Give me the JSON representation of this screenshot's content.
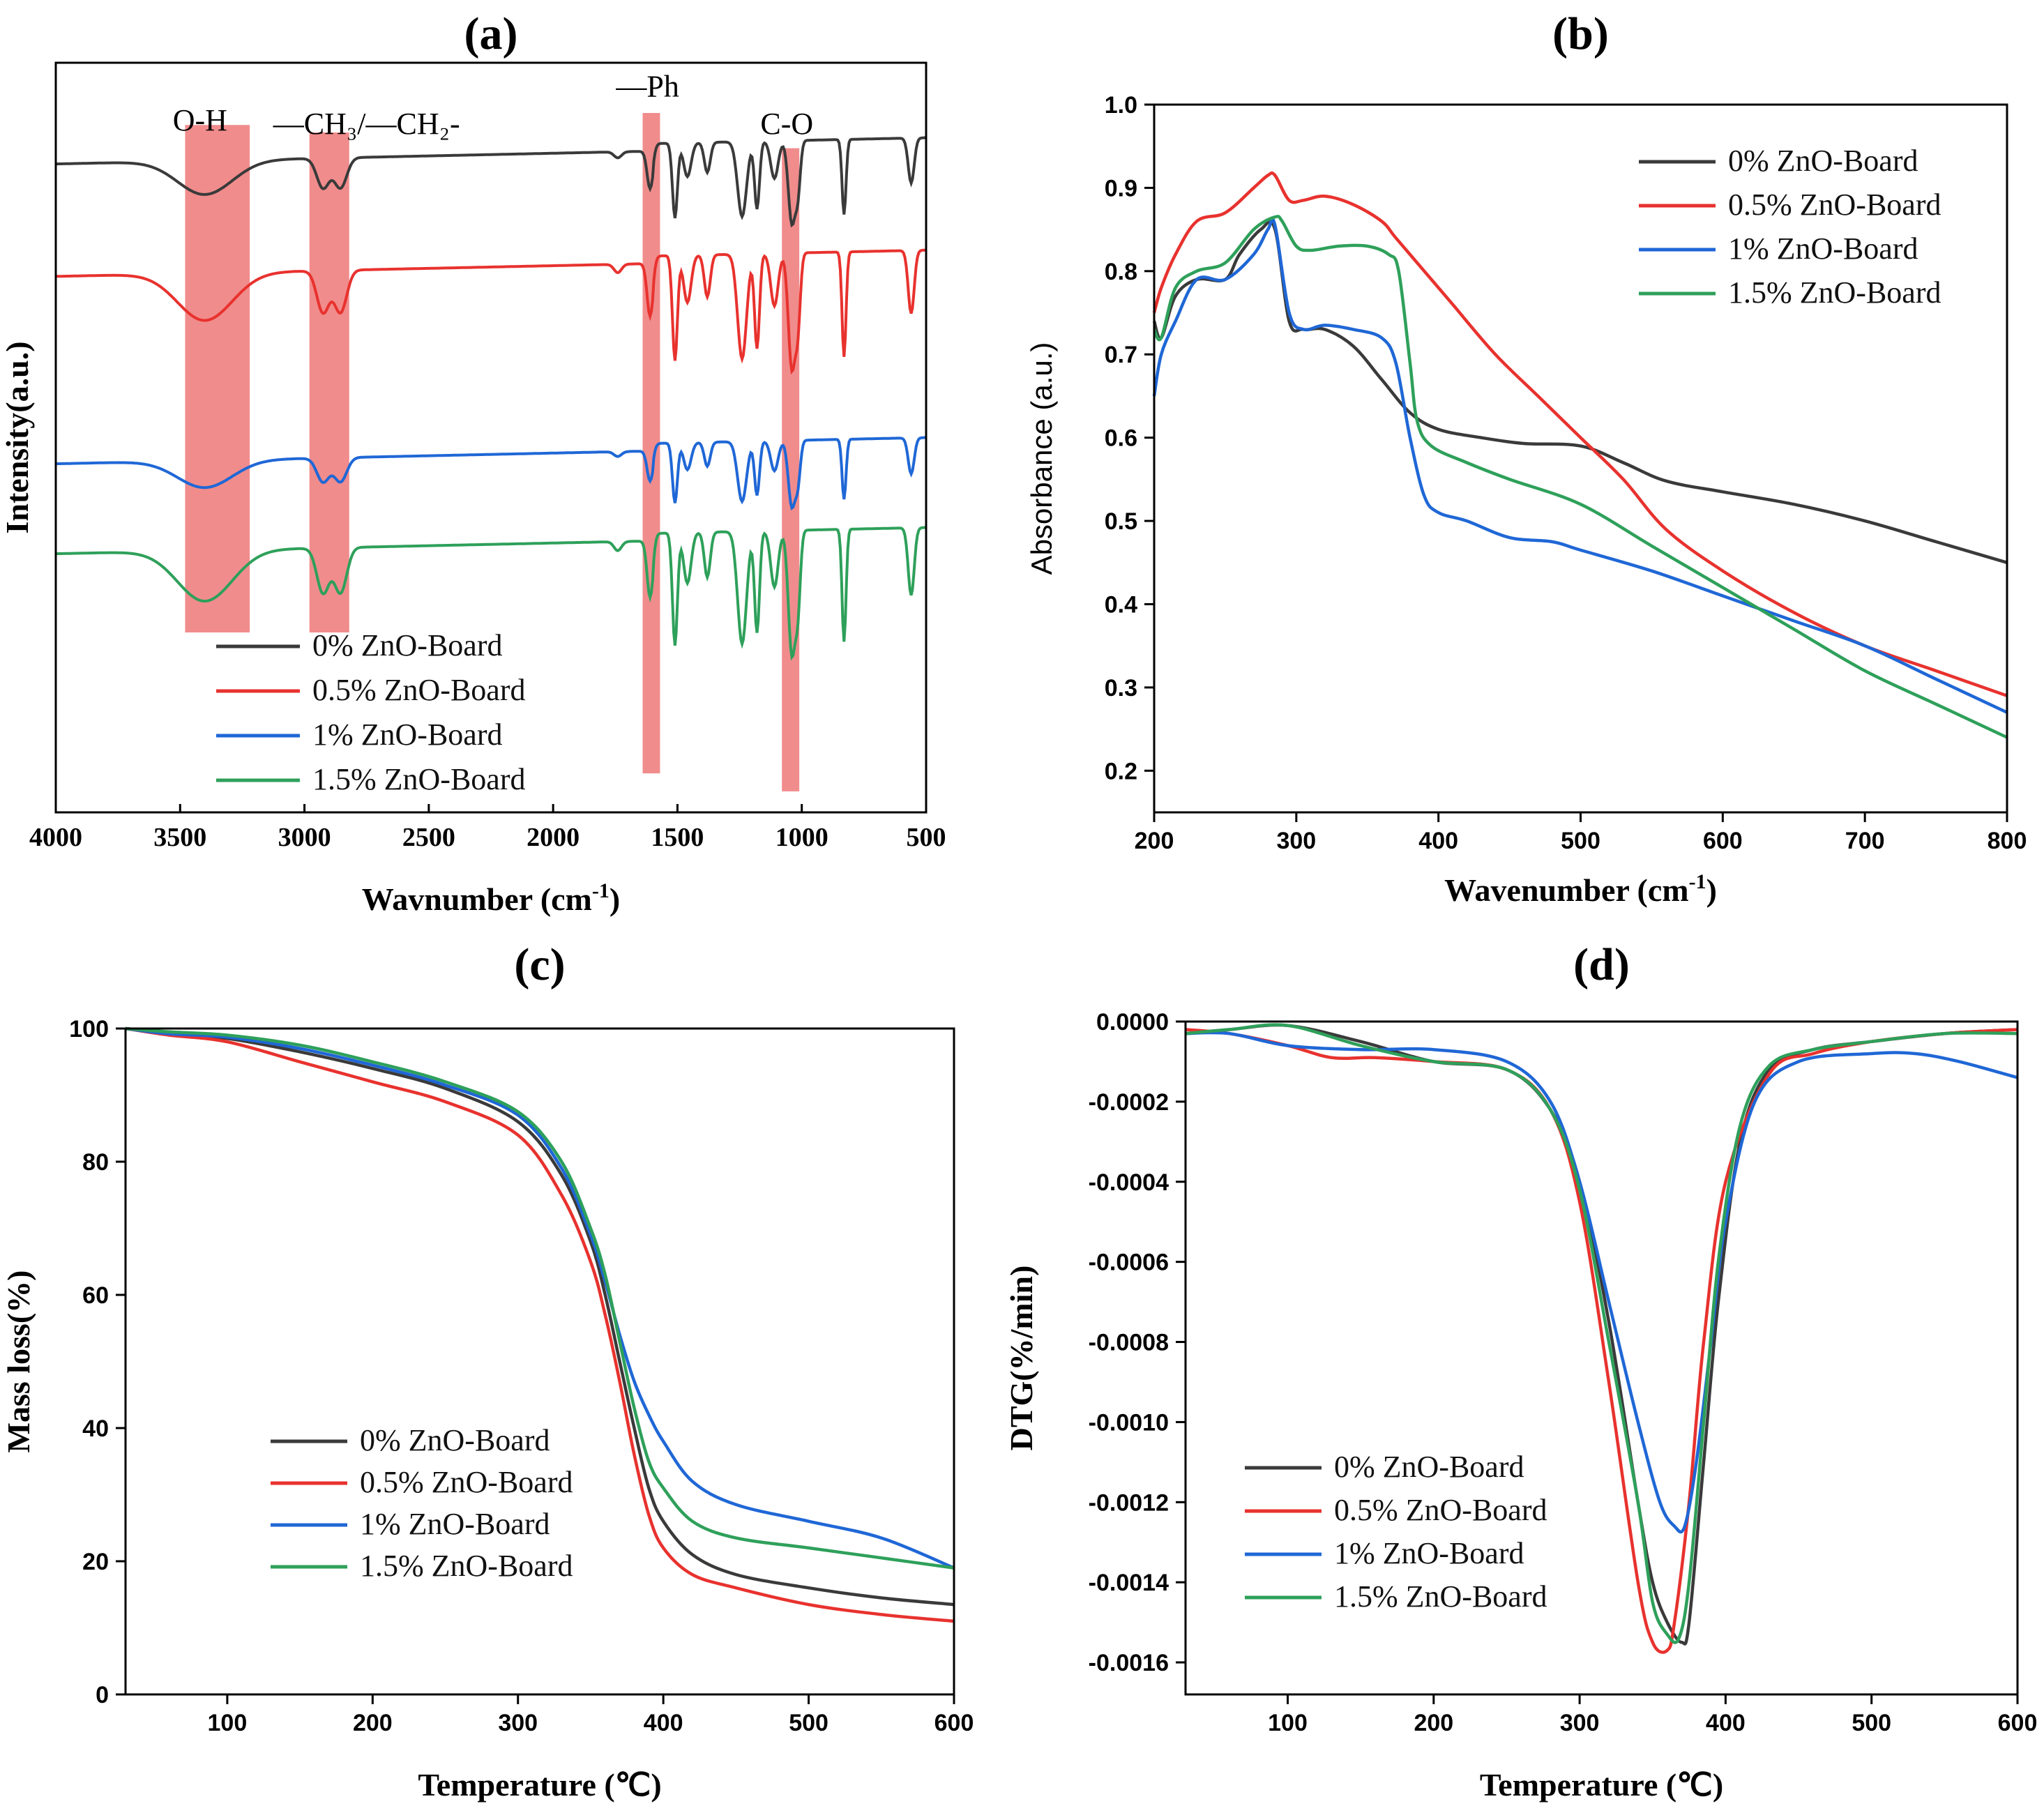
{
  "colors": {
    "0%": "#3a3a3a",
    "0.5%": "#e8322e",
    "1%": "#1f67d6",
    "1.5%": "#2ea05a",
    "band": "#f08080"
  },
  "chart_data": [
    {
      "id": "a",
      "panel_label": "(a)",
      "type": "line",
      "title": "",
      "xlabel": "Wavnumber (cm",
      "xlabel_sup": "-1",
      "xlabel_end": ")",
      "ylabel": "Intensity(a.u.)",
      "xlim": [
        4000,
        500
      ],
      "xticks": [
        "4000",
        "3500",
        "3000",
        "2500",
        "2000",
        "1500",
        "1000",
        "500"
      ],
      "annotations": [
        {
          "text": "O-H",
          "x": 3420
        },
        {
          "text": "—CH₃/—CH₂-",
          "x": 2750
        },
        {
          "text": "—Ph",
          "x": 1620
        },
        {
          "text": "C-O",
          "x": 1060
        }
      ],
      "bands": [
        [
          3480,
          3220
        ],
        [
          2980,
          2820
        ],
        [
          1640,
          1570
        ],
        [
          1080,
          1010
        ]
      ],
      "legend": [
        "0% ZnO-Board",
        "0.5% ZnO-Board",
        "1% ZnO-Board",
        "1.5% ZnO-Board"
      ],
      "series": [
        {
          "name": "0% ZnO-Board",
          "offset": 0.89,
          "depth": 1.0
        },
        {
          "name": "0.5% ZnO-Board",
          "offset": 0.74,
          "depth": 1.4
        },
        {
          "name": "1% ZnO-Board",
          "offset": 0.49,
          "depth": 0.8
        },
        {
          "name": "1.5% ZnO-Board",
          "offset": 0.37,
          "depth": 1.5
        }
      ]
    },
    {
      "id": "b",
      "panel_label": "(b)",
      "type": "line",
      "xlabel": "Wavenumber (cm",
      "xlabel_sup": "-1",
      "xlabel_end": ")",
      "ylabel": "Absorbance (a.u.)",
      "xlim": [
        200,
        800
      ],
      "ylim": [
        0.15,
        1.0
      ],
      "xticks": [
        200,
        300,
        400,
        500,
        600,
        700,
        800
      ],
      "yticks": [
        "0.2",
        "0.3",
        "0.4",
        "0.5",
        "0.6",
        "0.7",
        "0.8",
        "0.9",
        "1.0"
      ],
      "legend": [
        "0% ZnO-Board",
        "0.5% ZnO-Board",
        "1% ZnO-Board",
        "1.5% ZnO-Board"
      ],
      "series": [
        {
          "name": "0% ZnO-Board",
          "x": [
            200,
            205,
            215,
            230,
            250,
            260,
            275,
            285,
            295,
            305,
            320,
            340,
            360,
            380,
            400,
            430,
            460,
            500,
            530,
            560,
            600,
            650,
            700,
            750,
            800
          ],
          "y": [
            0.74,
            0.72,
            0.77,
            0.79,
            0.79,
            0.82,
            0.85,
            0.85,
            0.74,
            0.73,
            0.73,
            0.71,
            0.67,
            0.63,
            0.61,
            0.6,
            0.593,
            0.59,
            0.57,
            0.548,
            0.535,
            0.52,
            0.5,
            0.475,
            0.45
          ]
        },
        {
          "name": "0.5% ZnO-Board",
          "x": [
            200,
            205,
            215,
            230,
            250,
            270,
            280,
            285,
            295,
            305,
            320,
            340,
            360,
            370,
            390,
            410,
            440,
            470,
            500,
            530,
            560,
            600,
            650,
            700,
            750,
            800
          ],
          "y": [
            0.75,
            0.78,
            0.82,
            0.86,
            0.87,
            0.9,
            0.915,
            0.915,
            0.885,
            0.885,
            0.89,
            0.88,
            0.86,
            0.84,
            0.8,
            0.76,
            0.7,
            0.65,
            0.6,
            0.55,
            0.49,
            0.44,
            0.39,
            0.35,
            0.32,
            0.29
          ]
        },
        {
          "name": "1% ZnO-Board",
          "x": [
            200,
            205,
            215,
            230,
            250,
            270,
            280,
            285,
            295,
            305,
            320,
            340,
            360,
            370,
            380,
            390,
            400,
            420,
            450,
            480,
            500,
            550,
            600,
            650,
            700,
            750,
            800
          ],
          "y": [
            0.65,
            0.7,
            0.74,
            0.79,
            0.79,
            0.82,
            0.85,
            0.855,
            0.75,
            0.73,
            0.735,
            0.73,
            0.72,
            0.69,
            0.6,
            0.53,
            0.51,
            0.5,
            0.48,
            0.475,
            0.465,
            0.44,
            0.41,
            0.38,
            0.35,
            0.31,
            0.27
          ]
        },
        {
          "name": "1.5% ZnO-Board",
          "x": [
            200,
            205,
            215,
            230,
            250,
            270,
            285,
            290,
            300,
            310,
            330,
            350,
            365,
            372,
            380,
            385,
            395,
            420,
            450,
            500,
            550,
            600,
            650,
            700,
            750,
            800
          ],
          "y": [
            0.73,
            0.72,
            0.78,
            0.8,
            0.81,
            0.85,
            0.865,
            0.86,
            0.83,
            0.825,
            0.83,
            0.83,
            0.82,
            0.8,
            0.69,
            0.62,
            0.59,
            0.57,
            0.55,
            0.52,
            0.47,
            0.42,
            0.37,
            0.32,
            0.28,
            0.24
          ]
        }
      ]
    },
    {
      "id": "c",
      "panel_label": "(c)",
      "type": "line",
      "xlabel": "Temperature (℃)",
      "ylabel": "Mass loss(%)",
      "xlim": [
        30,
        600
      ],
      "ylim": [
        0,
        100
      ],
      "xticks": [
        100,
        200,
        300,
        400,
        500,
        600
      ],
      "yticks": [
        0,
        20,
        40,
        60,
        80,
        100
      ],
      "legend": [
        "0% ZnO-Board",
        "0.5% ZnO-Board",
        "1% ZnO-Board",
        "1.5% ZnO-Board"
      ],
      "series": [
        {
          "name": "0% ZnO-Board",
          "x": [
            30,
            60,
            100,
            150,
            200,
            250,
            300,
            330,
            350,
            360,
            370,
            380,
            390,
            400,
            420,
            450,
            500,
            550,
            600
          ],
          "y": [
            100,
            99.2,
            98.5,
            96.5,
            94,
            91,
            86,
            78,
            68,
            60,
            50,
            40,
            31,
            26,
            21,
            18,
            16,
            14.5,
            13.5
          ]
        },
        {
          "name": "0.5% ZnO-Board",
          "x": [
            30,
            60,
            100,
            150,
            200,
            250,
            300,
            330,
            350,
            360,
            370,
            380,
            390,
            400,
            420,
            450,
            500,
            550,
            600
          ],
          "y": [
            100,
            99,
            98,
            95,
            92,
            89,
            84,
            75,
            65,
            57,
            47,
            36,
            27,
            22,
            18,
            16,
            13.5,
            12,
            11
          ]
        },
        {
          "name": "1% ZnO-Board",
          "x": [
            30,
            60,
            100,
            150,
            200,
            250,
            300,
            330,
            350,
            360,
            370,
            380,
            390,
            400,
            420,
            450,
            500,
            550,
            600
          ],
          "y": [
            100,
            99.2,
            98.7,
            97,
            94.5,
            91.5,
            87,
            79,
            69,
            62,
            54,
            47,
            42,
            38,
            32,
            28.5,
            26,
            23.5,
            19
          ]
        },
        {
          "name": "1.5% ZnO-Board",
          "x": [
            30,
            60,
            100,
            150,
            200,
            250,
            300,
            330,
            350,
            360,
            370,
            380,
            390,
            400,
            420,
            450,
            500,
            550,
            600
          ],
          "y": [
            100,
            99.5,
            99,
            97.5,
            95,
            92,
            87.5,
            80,
            70,
            63,
            53,
            43,
            35,
            31,
            26,
            23.5,
            22,
            20.5,
            19
          ]
        }
      ]
    },
    {
      "id": "d",
      "panel_label": "(d)",
      "type": "line",
      "xlabel": "Temperature (℃)",
      "ylabel": "DTG(%/min)",
      "xlim": [
        30,
        600
      ],
      "ylim": [
        -0.00168,
        0.0
      ],
      "xticks": [
        100,
        200,
        300,
        400,
        500,
        600
      ],
      "yticks": [
        "0.0000",
        "-0.0002",
        "-0.0004",
        "-0.0006",
        "-0.0008",
        "-0.0010",
        "-0.0012",
        "-0.0014",
        "-0.0016"
      ],
      "legend": [
        "0% ZnO-Board",
        "0.5% ZnO-Board",
        "1% ZnO-Board",
        "1.5% ZnO-Board"
      ],
      "series": [
        {
          "name": "0% ZnO-Board",
          "x": [
            30,
            60,
            100,
            150,
            200,
            250,
            280,
            300,
            320,
            340,
            350,
            360,
            370,
            375,
            385,
            395,
            410,
            430,
            460,
            500,
            550,
            600
          ],
          "y": [
            -3e-05,
            -2e-05,
            -1e-05,
            -5e-05,
            -0.0001,
            -0.00012,
            -0.00022,
            -0.0004,
            -0.00075,
            -0.0012,
            -0.0014,
            -0.0015,
            -0.00155,
            -0.0015,
            -0.0011,
            -0.0007,
            -0.0003,
            -0.00012,
            -7e-05,
            -5e-05,
            -3e-05,
            -2e-05
          ]
        },
        {
          "name": "0.5% ZnO-Board",
          "x": [
            30,
            60,
            100,
            130,
            160,
            200,
            250,
            280,
            300,
            320,
            340,
            350,
            360,
            365,
            375,
            385,
            400,
            430,
            460,
            500,
            550,
            600
          ],
          "y": [
            -2e-05,
            -3e-05,
            -6e-05,
            -9e-05,
            -9e-05,
            -0.0001,
            -0.00012,
            -0.00022,
            -0.00045,
            -0.0009,
            -0.0014,
            -0.00155,
            -0.00157,
            -0.0015,
            -0.0012,
            -0.0008,
            -0.0004,
            -0.00013,
            -8e-05,
            -5e-05,
            -3e-05,
            -2e-05
          ]
        },
        {
          "name": "1% ZnO-Board",
          "x": [
            30,
            60,
            100,
            150,
            200,
            250,
            280,
            300,
            320,
            340,
            355,
            365,
            372,
            380,
            390,
            400,
            420,
            450,
            500,
            530,
            560,
            600
          ],
          "y": [
            -3e-05,
            -3e-05,
            -6e-05,
            -7e-05,
            -7e-05,
            -0.0001,
            -0.0002,
            -0.0004,
            -0.0007,
            -0.001,
            -0.0012,
            -0.00126,
            -0.00126,
            -0.0011,
            -0.0008,
            -0.0005,
            -0.0002,
            -0.0001,
            -8e-05,
            -8e-05,
            -0.0001,
            -0.00014
          ]
        },
        {
          "name": "1.5% ZnO-Board",
          "x": [
            30,
            60,
            100,
            150,
            200,
            250,
            280,
            300,
            320,
            340,
            350,
            360,
            368,
            375,
            385,
            395,
            410,
            430,
            460,
            500,
            550,
            600
          ],
          "y": [
            -3e-05,
            -2e-05,
            -1e-05,
            -6e-05,
            -0.0001,
            -0.00012,
            -0.00022,
            -0.00042,
            -0.0008,
            -0.0012,
            -0.00145,
            -0.00153,
            -0.00154,
            -0.0014,
            -0.001,
            -0.0006,
            -0.00026,
            -0.00011,
            -7e-05,
            -5e-05,
            -3e-05,
            -3e-05
          ]
        }
      ]
    }
  ]
}
